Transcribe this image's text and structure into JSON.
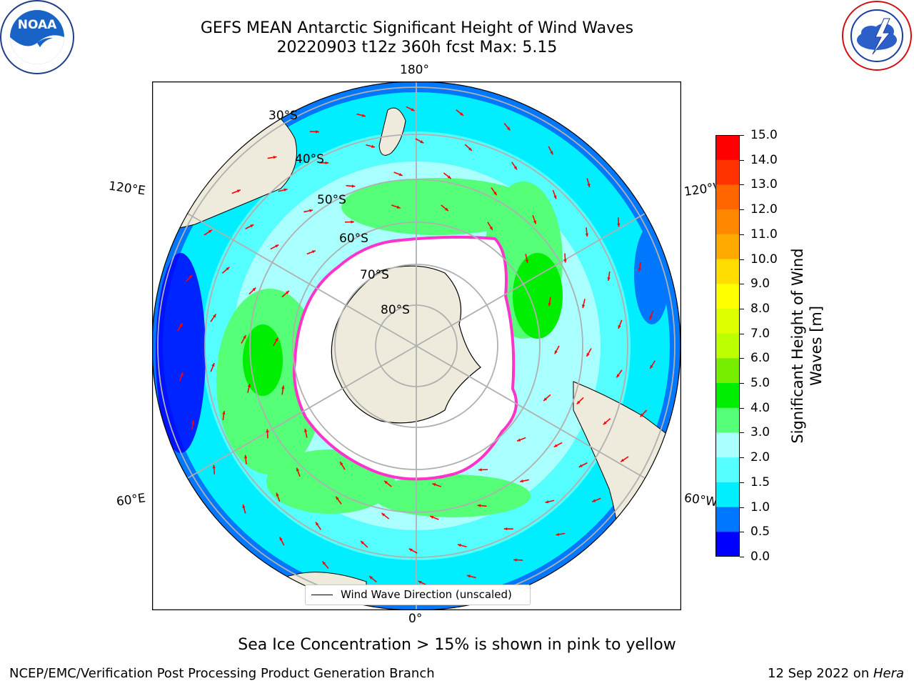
{
  "header": {
    "title_line1": "GEFS MEAN Antarctic Significant Height of Wind Waves",
    "title_line2": "20220903 t12z 360h fcst   Max: 5.15"
  },
  "logos": {
    "left": {
      "icon": "noaa-logo",
      "text": "NOAA",
      "ring_text": "NATIONAL OCEANIC AND ATMOSPHERIC ADMINISTRATION · U.S. DEPARTMENT OF COMMERCE"
    },
    "right": {
      "icon": "nws-logo",
      "ring_text": "NATIONAL WEATHER SERVICE"
    }
  },
  "map": {
    "projection": "south polar stereographic",
    "longitude_labels": {
      "top": "180°",
      "bottom": "0°",
      "upper_left": "120°E",
      "upper_right": "120°W",
      "lower_left": "60°E",
      "lower_right": "60°W"
    },
    "latitude_labels": [
      "30°S",
      "40°S",
      "50°S",
      "60°S",
      "70°S",
      "80°S"
    ],
    "legend_label": "Wind Wave Direction (unscaled)",
    "colors": {
      "land": "#efebdc",
      "ice_edge": "#ff33cc",
      "arrow": "#ff0000",
      "grid": "#b0b0b0",
      "ocean_light": "#aaffff"
    }
  },
  "colorbar": {
    "label": "Significant Height of Wind Waves [m]",
    "label_line1": "Significant Height of Wind",
    "label_line2": "Waves [m]",
    "ticks": [
      "15.0",
      "14.0",
      "13.0",
      "12.0",
      "11.0",
      "10.0",
      "9.0",
      "8.0",
      "7.0",
      "6.0",
      "5.0",
      "4.0",
      "3.0",
      "2.0",
      "1.5",
      "1.0",
      "0.5",
      "0.0"
    ],
    "colors_top_to_bottom": [
      "#ff0000",
      "#ff3300",
      "#ff6600",
      "#ff8800",
      "#ffaa00",
      "#ffdd00",
      "#ffff00",
      "#ddff00",
      "#bbff00",
      "#77ee00",
      "#00ee00",
      "#55ff77",
      "#aaffff",
      "#55ffff",
      "#00eeff",
      "#0077ff",
      "#0000ff"
    ]
  },
  "footer": {
    "note": "Sea Ice Concentration > 15% is shown in pink to yellow",
    "credit_left": "NCEP/EMC/Verification Post Processing Product Generation Branch",
    "credit_right_date": "12 Sep 2022 on ",
    "credit_right_host": "Hera"
  }
}
